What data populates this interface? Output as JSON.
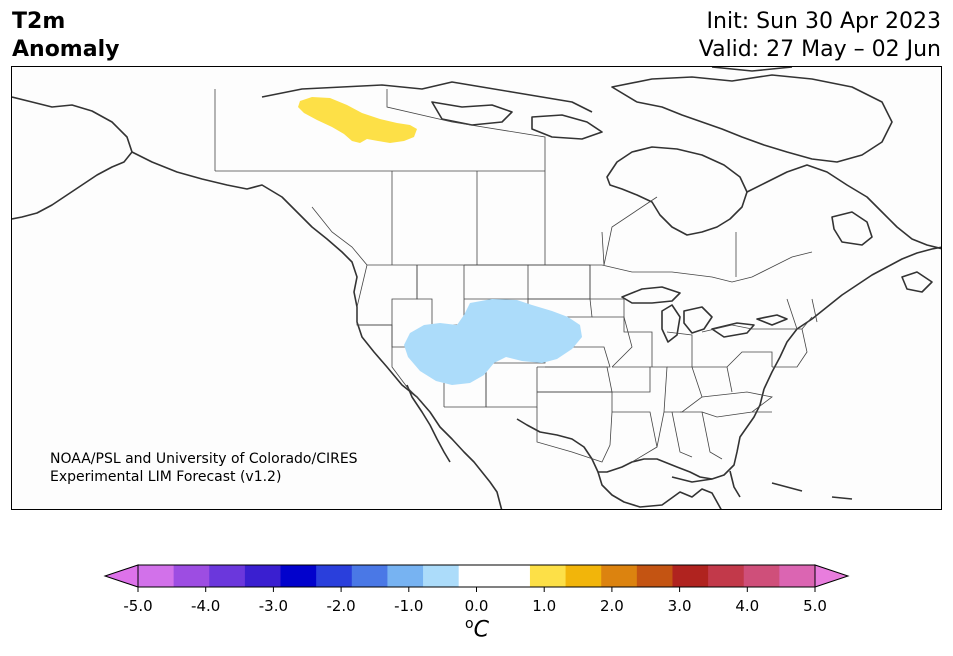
{
  "title": {
    "left_line1": "T2m",
    "left_line2": "Anomaly",
    "init": "Init: Sun 30 Apr 2023",
    "valid": "Valid: 27 May – 02 Jun"
  },
  "credit": {
    "line1": "NOAA/PSL and University of Colorado/CIRES",
    "line2": "Experimental LIM Forecast (v1.2)"
  },
  "map": {
    "region": "North America",
    "anomalies": [
      {
        "name": "warm-anomaly-northern-canada",
        "level": "0.5 to 1.0",
        "color": "#fde047"
      },
      {
        "name": "cool-anomaly-western-us",
        "level": "-1.0 to -0.5",
        "color": "#acdcfa"
      }
    ]
  },
  "colorbar": {
    "unit_base": "C",
    "unit_prefix": "o",
    "ticks": [
      "-5.0",
      "-4.0",
      "-3.0",
      "-2.0",
      "-1.0",
      "0.0",
      "1.0",
      "2.0",
      "3.0",
      "4.0",
      "5.0"
    ],
    "under_color": "#dd72ea",
    "over_color": "#e87ddd",
    "colors": [
      "#d271ea",
      "#9d4de2",
      "#6b37dc",
      "#3a1fd0",
      "#0202cc",
      "#2a3fdc",
      "#4a78e6",
      "#77b3f2",
      "#acdcfa",
      "#ffffff",
      "#ffffff",
      "#fde047",
      "#f2b50a",
      "#dc830f",
      "#c45412",
      "#b0231f",
      "#c2394a",
      "#cf4f7a",
      "#db65b2"
    ]
  }
}
